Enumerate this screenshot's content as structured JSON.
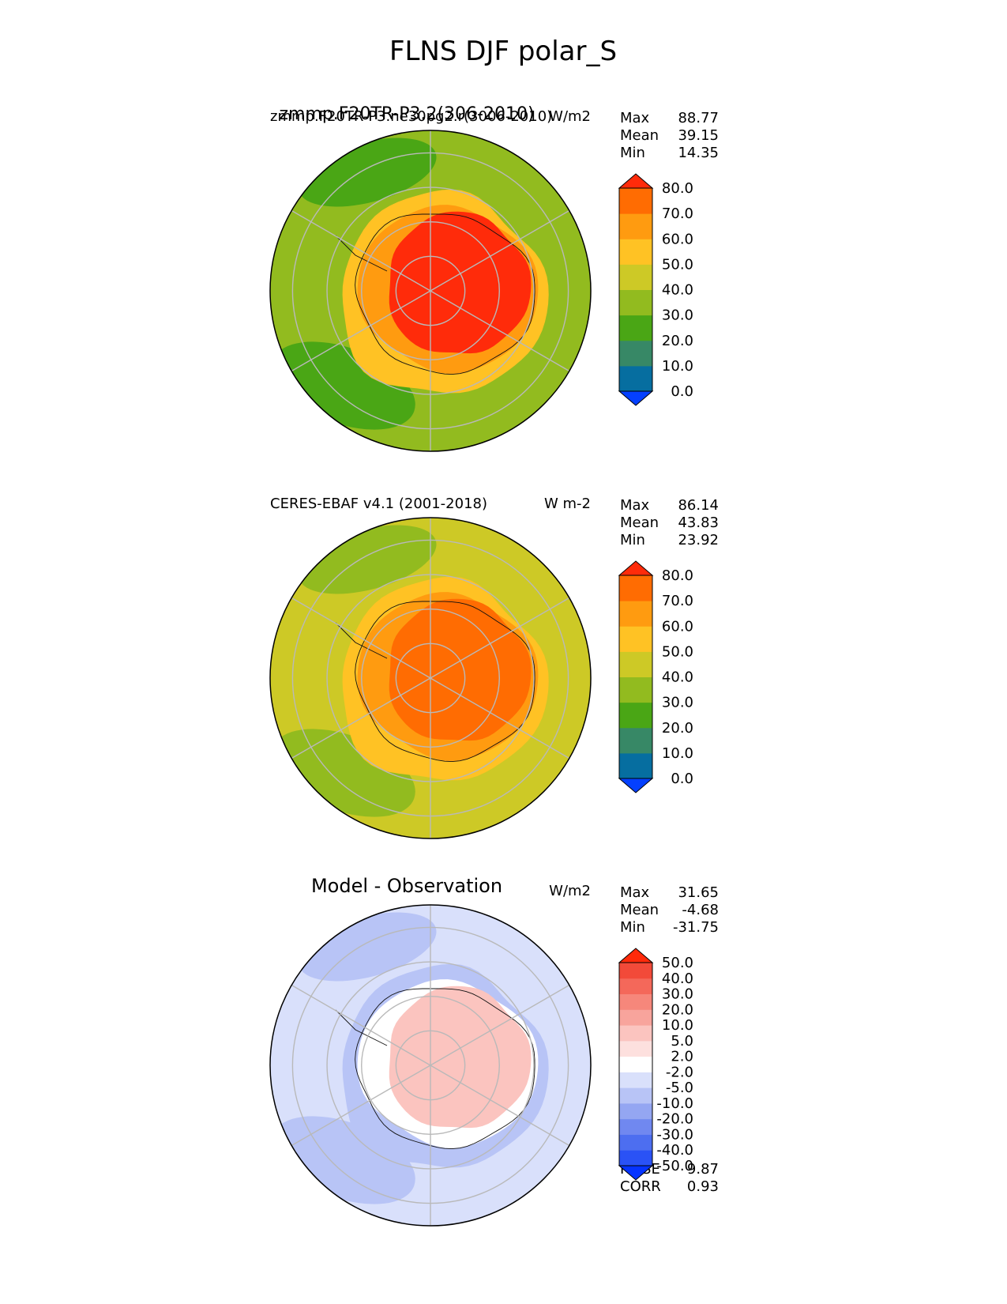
{
  "figure": {
    "title": "FLNS DJF polar_S"
  },
  "chart_data": [
    {
      "type": "heatmap",
      "projection": "south-polar-stereographic",
      "title_left": "zmmp.F20TR-P3.ne30pg2.r(3006-2010)",
      "title_center": "zmmp.F20TR-P3.2(306-2010)",
      "title_right": "W/m2",
      "stats": [
        {
          "label": "Max",
          "value": "88.77"
        },
        {
          "label": "Mean",
          "value": "39.15"
        },
        {
          "label": "Min",
          "value": "14.35"
        }
      ],
      "levels": [
        "0.0",
        "10.0",
        "20.0",
        "30.0",
        "40.0",
        "50.0",
        "60.0",
        "70.0",
        "80.0"
      ],
      "colors": [
        "#0440ff",
        "#066ea0",
        "#378866",
        "#4aa615",
        "#92bb1f",
        "#cdc926",
        "#ffc224",
        "#ff9b10",
        "#ff6c02",
        "#ff2b0a"
      ],
      "field_bands": {
        "interior": "80.0",
        "coast": "60.0",
        "sea_ice": "50.0",
        "ocean": "30.0",
        "storm_track": "20.0"
      }
    },
    {
      "type": "heatmap",
      "projection": "south-polar-stereographic",
      "title_left": "CERES-EBAF v4.1 (2001-2018)",
      "title_center": "",
      "title_right": "W m-2",
      "stats": [
        {
          "label": "Max",
          "value": "86.14"
        },
        {
          "label": "Mean",
          "value": "43.83"
        },
        {
          "label": "Min",
          "value": "23.92"
        }
      ],
      "levels": [
        "0.0",
        "10.0",
        "20.0",
        "30.0",
        "40.0",
        "50.0",
        "60.0",
        "70.0",
        "80.0"
      ],
      "colors": [
        "#0440ff",
        "#066ea0",
        "#378866",
        "#4aa615",
        "#92bb1f",
        "#cdc926",
        "#ffc224",
        "#ff9b10",
        "#ff6c02",
        "#ff2b0a"
      ],
      "field_bands": {
        "interior": "70.0",
        "coast": "60.0",
        "sea_ice": "50.0",
        "ocean": "40.0",
        "storm_track": "30.0"
      }
    },
    {
      "type": "heatmap",
      "projection": "south-polar-stereographic",
      "title_left": "",
      "title_center": "Model - Observation",
      "title_right": "W/m2",
      "stats": [
        {
          "label": "Max",
          "value": "31.65"
        },
        {
          "label": "Mean",
          "value": "-4.68"
        },
        {
          "label": "Min",
          "value": "-31.75"
        }
      ],
      "extra_stats": [
        {
          "label": "RMSE",
          "value": "9.87"
        },
        {
          "label": "CORR",
          "value": "0.93"
        }
      ],
      "levels": [
        "-50.0",
        "-40.0",
        "-30.0",
        "-20.0",
        "-10.0",
        "-5.0",
        "-2.0",
        "2.0",
        "5.0",
        "10.0",
        "20.0",
        "30.0",
        "40.0",
        "50.0"
      ],
      "colors": [
        "#0533ff",
        "#2a52f6",
        "#4d6ef0",
        "#7088f0",
        "#94a6f2",
        "#b8c4f6",
        "#d9e0fb",
        "#ffffff",
        "#fde0de",
        "#fbc4bf",
        "#f8a49c",
        "#f6877b",
        "#f4685a",
        "#f24a39",
        "#ff2a0a"
      ],
      "field_bands": {
        "interior": "5.0",
        "coast": "-2.0",
        "sea_ice": "-10.0",
        "ocean": "-5.0",
        "storm_track": "-10.0"
      }
    }
  ]
}
